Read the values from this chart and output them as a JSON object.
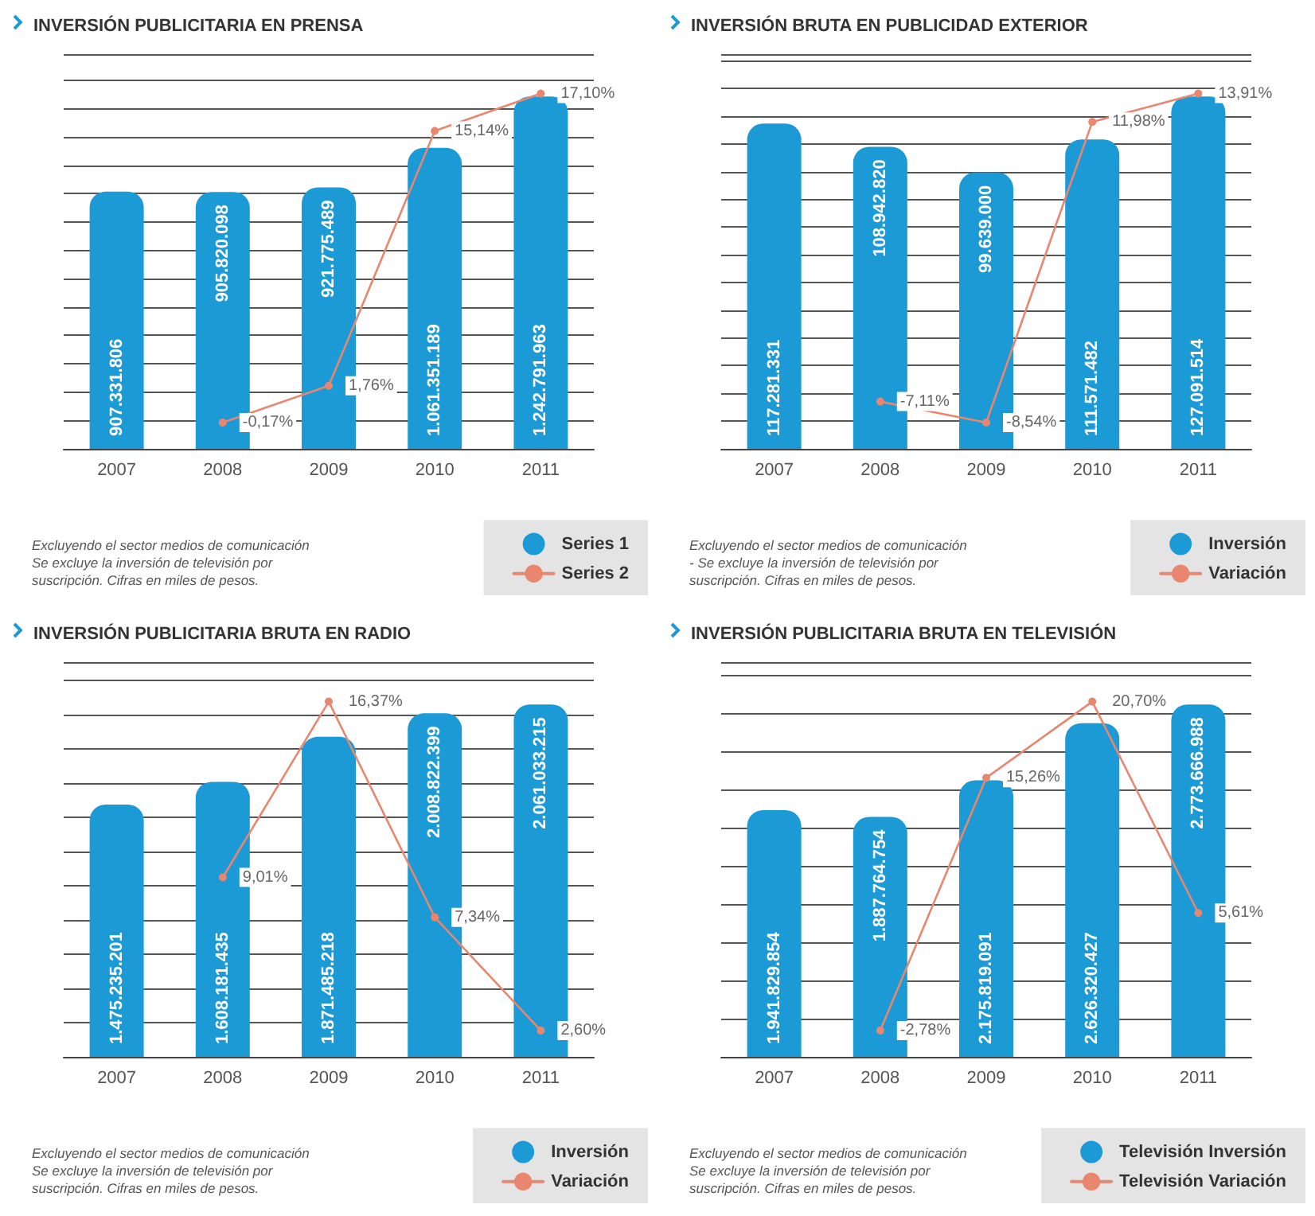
{
  "chart_data": [
    {
      "type": "bar",
      "title": "INVERSIÓN PUBLICITARIA EN PRENSA",
      "categories": [
        "2007",
        "2008",
        "2009",
        "2010",
        "2011"
      ],
      "grid": "y",
      "legend": "bottom right",
      "tick_labels": "x",
      "marker": "circle",
      "line_style": "solid",
      "annotations": [
        "Excluyendo el sector medios de comunicación\nSe excluye la inversión de televisión por suscripción. Cifras en miles de pesos."
      ],
      "series": [
        {
          "name": "Series 1",
          "color": "#1b9ad6",
          "values": [
            907331806,
            905820098,
            921775489,
            1061351189,
            1242791963
          ],
          "value_labels": [
            "907.331.806",
            "905.820.098",
            "921.775.489",
            "1.061.351.189",
            "1.242.791.963"
          ]
        },
        {
          "name": "Series 2",
          "type": "line",
          "axis": "y2",
          "color": "#e8866f",
          "values": [
            null,
            -0.17,
            1.76,
            15.14,
            17.1
          ],
          "value_labels": [
            null,
            "-0,17%",
            "1,76%",
            "15,14%",
            "17,10%"
          ]
        }
      ]
    },
    {
      "type": "bar",
      "title": "INVERSIÓN BRUTA EN PUBLICIDAD EXTERIOR",
      "categories": [
        "2007",
        "2008",
        "2009",
        "2010",
        "2011"
      ],
      "grid": "y",
      "legend": "bottom right",
      "tick_labels": "x",
      "marker": "circle",
      "line_style": "solid",
      "annotations": [
        "Excluyendo el sector medios de comunicación\n- Se excluye la inversión de televisión por suscripción. Cifras en miles de pesos."
      ],
      "series": [
        {
          "name": "Inversión",
          "color": "#1b9ad6",
          "values": [
            117281331,
            108942820,
            99639000,
            111571482,
            127091514
          ],
          "value_labels": [
            "117.281.331",
            "108.942.820",
            "99.639.000",
            "111.571.482",
            "127.091.514"
          ]
        },
        {
          "name": "Variación",
          "type": "line",
          "axis": "y2",
          "color": "#e8866f",
          "values": [
            null,
            -7.11,
            -8.54,
            11.98,
            13.91
          ],
          "value_labels": [
            null,
            "-7,11%",
            "-8,54%",
            "11,98%",
            "13,91%"
          ]
        }
      ]
    },
    {
      "type": "bar",
      "title": "INVERSIÓN PUBLICITARIA BRUTA EN RADIO",
      "categories": [
        "2007",
        "2008",
        "2009",
        "2010",
        "2011"
      ],
      "grid": "y",
      "legend": "bottom right",
      "tick_labels": "x",
      "marker": "circle",
      "line_style": "solid",
      "annotations": [
        "Excluyendo el sector medios de comunicación\nSe excluye la inversión de televisión por suscripción. Cifras en miles de pesos."
      ],
      "series": [
        {
          "name": "Inversión",
          "color": "#1b9ad6",
          "values": [
            1475235201,
            1608181435,
            1871485218,
            2008822399,
            2061033215
          ],
          "value_labels": [
            "1.475.235.201",
            "1.608.181.435",
            "1.871.485.218",
            "2.008.822.399",
            "2.061.033.215"
          ]
        },
        {
          "name": "Variación",
          "type": "line",
          "axis": "y2",
          "color": "#e8866f",
          "values": [
            null,
            9.01,
            16.37,
            7.34,
            2.6
          ],
          "value_labels": [
            null,
            "9,01%",
            "16,37%",
            "7,34%",
            "2,60%"
          ]
        }
      ]
    },
    {
      "type": "bar",
      "title": "INVERSIÓN PUBLICITARIA BRUTA EN TELEVISIÓN",
      "categories": [
        "2007",
        "2008",
        "2009",
        "2010",
        "2011"
      ],
      "grid": "y",
      "legend": "bottom right",
      "tick_labels": "x",
      "marker": "circle",
      "line_style": "solid",
      "annotations": [
        "Excluyendo el sector medios de comunicación\nSe excluye la inversión de televisión por suscripción. Cifras en miles de pesos."
      ],
      "series": [
        {
          "name": "Televisión Inversión",
          "color": "#1b9ad6",
          "values": [
            1941829854,
            1887764754,
            2175819091,
            2626320427,
            2773666988
          ],
          "value_labels": [
            "1.941.829.854",
            "1.887.764.754",
            "2.175.819.091",
            "2.626.320.427",
            "2.773.666.988"
          ]
        },
        {
          "name": "Televisión Variación",
          "type": "line",
          "axis": "y2",
          "color": "#e8866f",
          "values": [
            null,
            -2.78,
            15.26,
            20.7,
            5.61
          ],
          "value_labels": [
            null,
            "-2,78%",
            "15,26%",
            "20,70%",
            "5,61%"
          ]
        }
      ]
    }
  ]
}
